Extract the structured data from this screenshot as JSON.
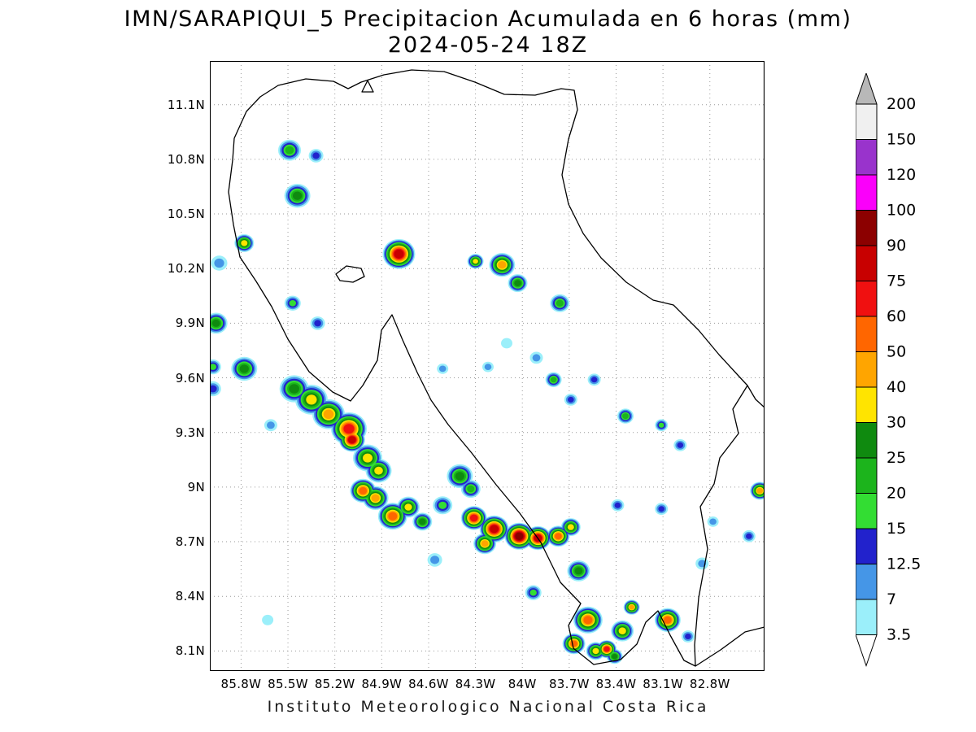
{
  "title": {
    "line1": "IMN/SARAPIQUI_5 Precipitacion Acumulada en 6 horas (mm)",
    "line2": "2024-05-24 18Z"
  },
  "caption": "Instituto Meteorologico Nacional Costa Rica",
  "axes": {
    "lat_labels": [
      "11.1N",
      "10.8N",
      "10.5N",
      "10.2N",
      "9.9N",
      "9.6N",
      "9.3N",
      "9N",
      "8.7N",
      "8.4N",
      "8.1N"
    ],
    "lon_labels": [
      "85.8W",
      "85.5W",
      "85.2W",
      "84.9W",
      "84.6W",
      "84.3W",
      "84W",
      "83.7W",
      "83.4W",
      "83.1W",
      "82.8W"
    ]
  },
  "colorbar": {
    "labels_top_to_bottom": [
      "200",
      "150",
      "120",
      "100",
      "90",
      "75",
      "60",
      "50",
      "40",
      "30",
      "25",
      "20",
      "15",
      "12.5",
      "7",
      "3.5"
    ],
    "segment_colors_top_to_bottom": [
      "#f0f0f0",
      "#9933cc",
      "#fa00fa",
      "#8c0000",
      "#c80000",
      "#f01010",
      "#ff6600",
      "#ffa500",
      "#ffe400",
      "#0f8a0f",
      "#1cb41c",
      "#33dd33",
      "#2222cc",
      "#4596e7",
      "#9beffa"
    ],
    "top_triangle_color": "#b8b8b8",
    "bottom_triangle_color": "#ffffff"
  },
  "chart_data": {
    "type": "heatmap",
    "model": "IMN/SARAPIQUI_5",
    "field": "Precipitacion Acumulada en 6 horas",
    "units": "mm",
    "valid_time": "2024-05-24 18Z",
    "region": "Costa Rica",
    "lon_range_w": [
      86.0,
      82.45
    ],
    "lat_range_n": [
      11.34,
      7.99
    ],
    "levels_mm": [
      3.5,
      7,
      12.5,
      15,
      20,
      25,
      30,
      40,
      50,
      60,
      75,
      90,
      100,
      120,
      150,
      200
    ],
    "level_colors": {
      "3.5": "#9beffa",
      "7": "#4596e7",
      "12.5": "#2222cc",
      "15": "#33dd33",
      "20": "#1cb41c",
      "25": "#0f8a0f",
      "30": "#ffe400",
      "40": "#ffa500",
      "50": "#ff6600",
      "60": "#f01010",
      "75": "#c80000",
      "90": "#8c0000",
      "100": "#fa00fa",
      "120": "#9933cc",
      "150": "#f0f0f0",
      "200": "#b8b8b8"
    },
    "cells_format": [
      "lon_w",
      "lat_n",
      "peak_mm",
      "radius_px"
    ],
    "cells": [
      [
        85.49,
        10.85,
        20,
        14
      ],
      [
        85.32,
        10.82,
        12.5,
        9
      ],
      [
        85.44,
        10.6,
        25,
        16
      ],
      [
        85.78,
        10.34,
        30,
        12
      ],
      [
        85.94,
        10.23,
        7,
        10
      ],
      [
        84.79,
        10.28,
        75,
        20
      ],
      [
        84.3,
        10.24,
        30,
        10
      ],
      [
        84.13,
        10.22,
        40,
        16
      ],
      [
        84.03,
        10.12,
        25,
        12
      ],
      [
        83.76,
        10.01,
        20,
        12
      ],
      [
        85.96,
        9.9,
        25,
        14
      ],
      [
        85.98,
        9.66,
        15,
        10
      ],
      [
        85.78,
        9.65,
        25,
        16
      ],
      [
        85.98,
        9.54,
        12.5,
        10
      ],
      [
        83.91,
        9.71,
        7,
        8
      ],
      [
        83.8,
        9.59,
        20,
        10
      ],
      [
        83.69,
        9.48,
        12.5,
        8
      ],
      [
        83.54,
        9.59,
        12.5,
        8
      ],
      [
        83.34,
        9.39,
        20,
        10
      ],
      [
        83.11,
        9.34,
        15,
        8
      ],
      [
        82.99,
        9.23,
        12.5,
        8
      ],
      [
        85.46,
        9.54,
        25,
        18
      ],
      [
        85.35,
        9.48,
        30,
        20
      ],
      [
        85.24,
        9.4,
        40,
        20
      ],
      [
        85.11,
        9.32,
        60,
        22
      ],
      [
        85.09,
        9.26,
        75,
        16
      ],
      [
        84.99,
        9.16,
        30,
        18
      ],
      [
        85.02,
        8.98,
        50,
        16
      ],
      [
        84.92,
        9.09,
        30,
        16
      ],
      [
        84.94,
        8.94,
        40,
        16
      ],
      [
        84.83,
        8.84,
        50,
        18
      ],
      [
        84.73,
        8.89,
        30,
        14
      ],
      [
        84.64,
        8.81,
        25,
        12
      ],
      [
        84.51,
        8.9,
        15,
        12
      ],
      [
        84.4,
        9.06,
        25,
        16
      ],
      [
        84.33,
        8.99,
        20,
        12
      ],
      [
        84.31,
        8.83,
        60,
        16
      ],
      [
        84.18,
        8.77,
        75,
        18
      ],
      [
        84.02,
        8.73,
        90,
        18
      ],
      [
        83.9,
        8.72,
        75,
        16
      ],
      [
        83.77,
        8.73,
        50,
        14
      ],
      [
        83.69,
        8.78,
        30,
        12
      ],
      [
        84.24,
        8.69,
        40,
        14
      ],
      [
        83.64,
        8.54,
        25,
        14
      ],
      [
        83.58,
        8.27,
        50,
        18
      ],
      [
        83.67,
        8.14,
        50,
        14
      ],
      [
        83.53,
        8.1,
        30,
        12
      ],
      [
        83.46,
        8.11,
        60,
        12
      ],
      [
        83.36,
        8.21,
        30,
        14
      ],
      [
        83.3,
        8.34,
        40,
        10
      ],
      [
        83.41,
        8.07,
        25,
        10
      ],
      [
        83.07,
        8.27,
        50,
        16
      ],
      [
        82.94,
        8.18,
        12.5,
        8
      ],
      [
        82.85,
        8.58,
        7,
        8
      ],
      [
        82.48,
        8.98,
        40,
        12
      ],
      [
        82.55,
        8.73,
        12.5,
        8
      ],
      [
        82.78,
        8.81,
        7,
        7
      ],
      [
        83.11,
        8.88,
        12.5,
        8
      ],
      [
        84.51,
        9.65,
        7,
        7
      ],
      [
        84.22,
        9.66,
        7,
        7
      ],
      [
        84.1,
        9.79,
        3.5,
        7
      ],
      [
        85.47,
        10.01,
        15,
        10
      ],
      [
        85.31,
        9.9,
        12.5,
        9
      ],
      [
        85.61,
        9.34,
        7,
        8
      ],
      [
        85.63,
        8.27,
        3.5,
        7
      ],
      [
        83.93,
        8.42,
        15,
        10
      ],
      [
        84.56,
        8.6,
        7,
        9
      ],
      [
        83.39,
        8.9,
        12.5,
        8
      ]
    ]
  }
}
